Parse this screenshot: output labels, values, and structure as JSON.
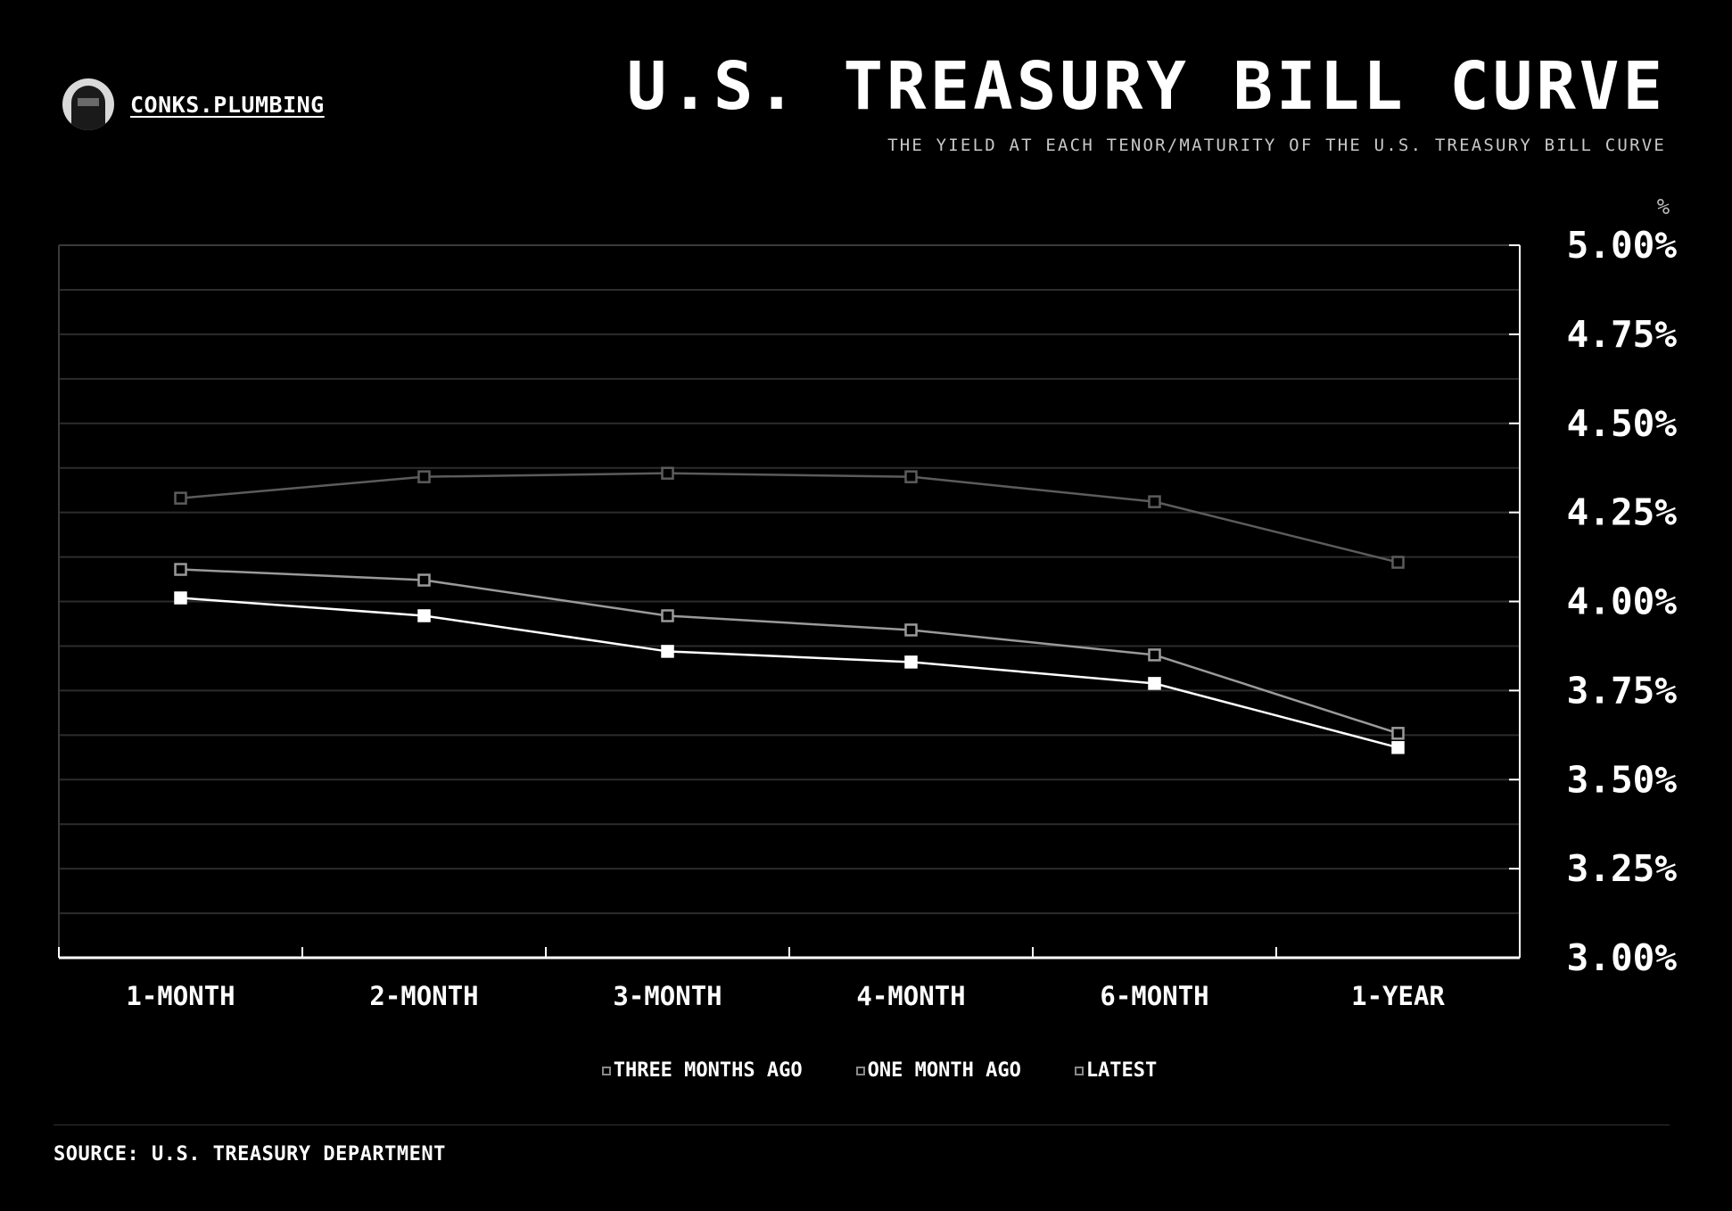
{
  "brand": {
    "name": "CONKS.PLUMBING"
  },
  "header": {
    "title": "U.S. TREASURY BILL CURVE",
    "subtitle": "THE YIELD AT EACH TENOR/MATURITY OF THE U.S. TREASURY BILL CURVE"
  },
  "footer": {
    "source": "SOURCE: U.S. TREASURY DEPARTMENT"
  },
  "chart_data": {
    "type": "line",
    "title": "U.S. TREASURY BILL CURVE",
    "subtitle": "THE YIELD AT EACH TENOR/MATURITY OF THE U.S. TREASURY BILL CURVE",
    "xlabel": "",
    "ylabel": "%",
    "categories": [
      "1-MONTH",
      "2-MONTH",
      "3-MONTH",
      "4-MONTH",
      "6-MONTH",
      "1-YEAR"
    ],
    "ylim": [
      3.0,
      5.0
    ],
    "yticks": [
      3.0,
      3.25,
      3.5,
      3.75,
      4.0,
      4.25,
      4.5,
      4.75,
      5.0
    ],
    "ytick_labels": [
      "3.00%",
      "3.25%",
      "3.50%",
      "3.75%",
      "4.00%",
      "4.25%",
      "4.50%",
      "4.75%",
      "5.00%"
    ],
    "y_axis_position": "right",
    "grid": true,
    "legend_position": "bottom-center",
    "series": [
      {
        "name": "THREE MONTHS AGO",
        "values": [
          4.29,
          4.35,
          4.36,
          4.35,
          4.28,
          4.11
        ],
        "color": "#5c5c5c",
        "marker": "hollow-square"
      },
      {
        "name": "ONE MONTH AGO",
        "values": [
          4.09,
          4.06,
          3.96,
          3.92,
          3.85,
          3.63
        ],
        "color": "#9a9a9a",
        "marker": "hollow-square"
      },
      {
        "name": "LATEST",
        "values": [
          4.01,
          3.96,
          3.86,
          3.83,
          3.77,
          3.59
        ],
        "color": "#ffffff",
        "marker": "filled-square"
      }
    ]
  }
}
